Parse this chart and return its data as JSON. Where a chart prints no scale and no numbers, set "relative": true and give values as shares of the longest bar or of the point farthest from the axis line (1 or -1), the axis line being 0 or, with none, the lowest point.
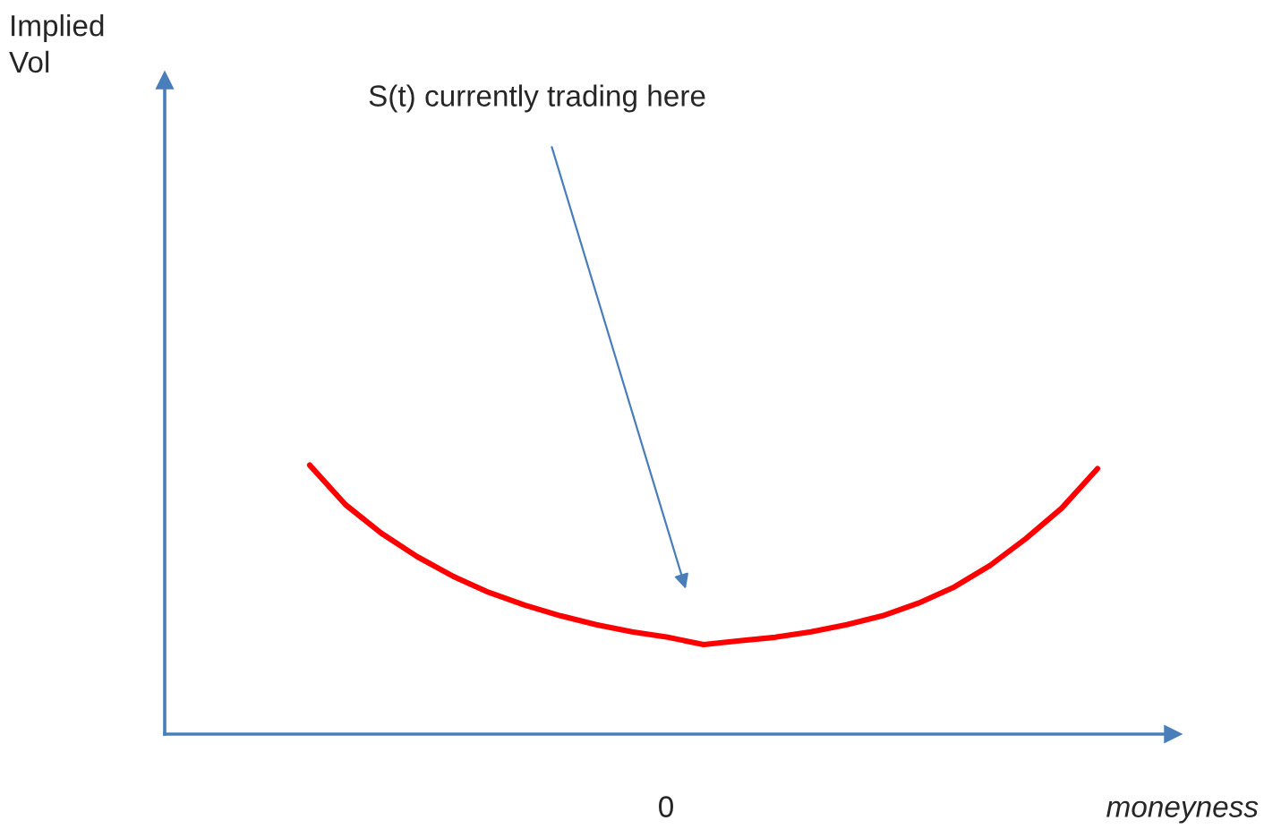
{
  "chart_data": {
    "type": "line",
    "relative": true,
    "xlabel": "moneyness",
    "categories": [
      null,
      null,
      null,
      null,
      null,
      null,
      null,
      null,
      null,
      null,
      null,
      null,
      null,
      null,
      null,
      null,
      null,
      null,
      null,
      null,
      null,
      null,
      null
    ],
    "series": [
      {
        "color": "#ff0000",
        "values": [
          1,
          0.853,
          0.747,
          0.66,
          0.587,
          0.527,
          0.48,
          0.44,
          0.407,
          0.38,
          0.36,
          0.333,
          0.347,
          0.36,
          0.38,
          0.407,
          0.44,
          0.487,
          0.547,
          0.627,
          0.727,
          0.84,
          0.987
        ]
      }
    ],
    "annotations": [
      "S(t) currently trading here",
      "0",
      "Implied\nVol"
    ],
    "grid": false,
    "legend": false,
    "marker": "none",
    "line_style": "solid"
  }
}
